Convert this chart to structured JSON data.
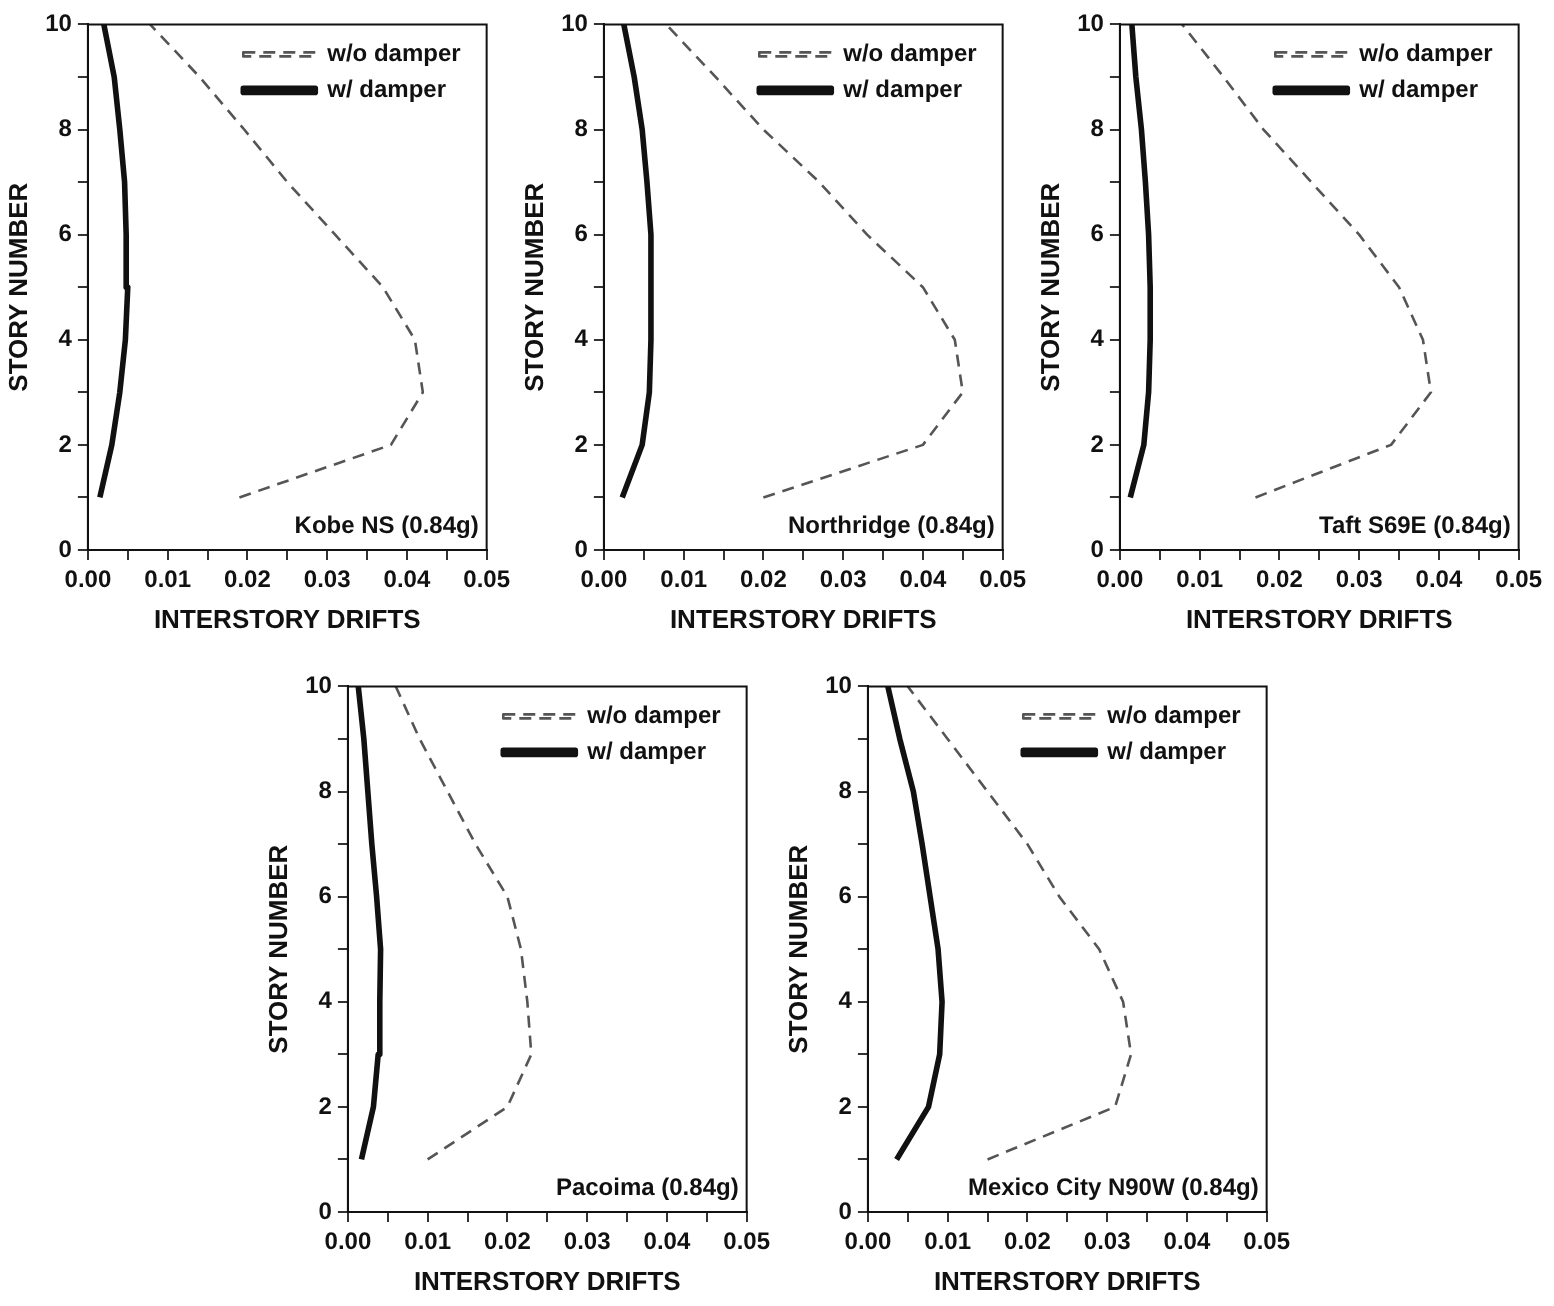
{
  "chart_data": [
    {
      "type": "line",
      "xlabel": "INTERSTORY DRIFTS",
      "ylabel": "STORY NUMBER",
      "xlim": [
        0,
        0.05
      ],
      "ylim": [
        0,
        10
      ],
      "xticks": [
        {
          "value": 0,
          "label": "0.00"
        },
        {
          "value": 0.005,
          "label": null
        },
        {
          "value": 0.01,
          "label": "0.01"
        },
        {
          "value": 0.015,
          "label": null
        },
        {
          "value": 0.02,
          "label": "0.02"
        },
        {
          "value": 0.025,
          "label": null
        },
        {
          "value": 0.03,
          "label": "0.03"
        },
        {
          "value": 0.035,
          "label": null
        },
        {
          "value": 0.04,
          "label": "0.04"
        },
        {
          "value": 0.045,
          "label": null
        },
        {
          "value": 0.05,
          "label": "0.05"
        }
      ],
      "yticks": [
        0,
        {
          "value": 1,
          "label": null
        },
        2,
        {
          "value": 3,
          "label": null
        },
        4,
        {
          "value": 5,
          "label": null
        },
        6,
        {
          "value": 7,
          "label": null
        },
        8,
        {
          "value": 9,
          "label": null
        },
        10
      ],
      "grid": false,
      "legend": "top right",
      "marker": "none",
      "annotations": [
        "Kobe NS (0.84g)"
      ],
      "series": [
        {
          "name": "w/o damper",
          "color": "#555555",
          "line_style": "dashed",
          "x": [
            0.019,
            0.038,
            0.042,
            0.041,
            0.037,
            0.031,
            0.025,
            0.0196,
            0.014,
            0.0078
          ],
          "values": [
            1,
            2,
            3,
            4,
            5,
            6,
            7,
            8,
            9,
            10
          ]
        },
        {
          "name": "w/ damper",
          "color": "#111111",
          "line_style": "solid",
          "x": [
            0.0015,
            0.003,
            0.004,
            0.0047,
            0.005,
            0.0048,
            0.0046,
            0.004,
            0.0033,
            0.002
          ],
          "values": [
            1,
            2,
            3,
            4,
            5,
            6,
            7,
            8,
            9,
            10
          ]
        }
      ]
    },
    {
      "type": "line",
      "xlabel": "INTERSTORY DRIFTS",
      "ylabel": "STORY NUMBER",
      "xlim": [
        0,
        0.05
      ],
      "ylim": [
        0,
        10
      ],
      "xticks": [
        {
          "value": 0,
          "label": "0.00"
        },
        {
          "value": 0.005,
          "label": null
        },
        {
          "value": 0.01,
          "label": "0.01"
        },
        {
          "value": 0.015,
          "label": null
        },
        {
          "value": 0.02,
          "label": "0.02"
        },
        {
          "value": 0.025,
          "label": null
        },
        {
          "value": 0.03,
          "label": "0.03"
        },
        {
          "value": 0.035,
          "label": null
        },
        {
          "value": 0.04,
          "label": "0.04"
        },
        {
          "value": 0.045,
          "label": null
        },
        {
          "value": 0.05,
          "label": "0.05"
        }
      ],
      "yticks": [
        0,
        {
          "value": 1,
          "label": null
        },
        2,
        {
          "value": 3,
          "label": null
        },
        4,
        {
          "value": 5,
          "label": null
        },
        6,
        {
          "value": 7,
          "label": null
        },
        8,
        {
          "value": 9,
          "label": null
        },
        10
      ],
      "grid": false,
      "legend": "top right",
      "marker": "none",
      "annotations": [
        "Northridge (0.84g)"
      ],
      "series": [
        {
          "name": "w/o damper",
          "color": "#555555",
          "line_style": "dashed",
          "x": [
            0.02,
            0.04,
            0.045,
            0.044,
            0.04,
            0.033,
            0.027,
            0.02,
            0.014,
            0.0078
          ],
          "values": [
            1,
            2,
            3,
            4,
            5,
            6,
            7,
            8,
            9,
            10
          ]
        },
        {
          "name": "w/ damper",
          "color": "#111111",
          "line_style": "solid",
          "x": [
            0.0023,
            0.0048,
            0.0057,
            0.0059,
            0.006,
            0.0058,
            0.0054,
            0.0048,
            0.0038,
            0.0025
          ],
          "values": [
            1,
            2,
            3,
            4,
            5,
            6,
            7,
            8,
            9,
            10
          ]
        }
      ]
    },
    {
      "type": "line",
      "xlabel": "INTERSTORY DRIFTS",
      "ylabel": "STORY NUMBER",
      "xlim": [
        0,
        0.05
      ],
      "ylim": [
        0,
        10
      ],
      "xticks": [
        {
          "value": 0,
          "label": "0.00"
        },
        {
          "value": 0.005,
          "label": null
        },
        {
          "value": 0.01,
          "label": "0.01"
        },
        {
          "value": 0.015,
          "label": null
        },
        {
          "value": 0.02,
          "label": "0.02"
        },
        {
          "value": 0.025,
          "label": null
        },
        {
          "value": 0.03,
          "label": "0.03"
        },
        {
          "value": 0.035,
          "label": null
        },
        {
          "value": 0.04,
          "label": "0.04"
        },
        {
          "value": 0.045,
          "label": null
        },
        {
          "value": 0.05,
          "label": "0.05"
        }
      ],
      "yticks": [
        0,
        {
          "value": 1,
          "label": null
        },
        2,
        {
          "value": 3,
          "label": null
        },
        4,
        {
          "value": 5,
          "label": null
        },
        6,
        {
          "value": 7,
          "label": null
        },
        8,
        {
          "value": 9,
          "label": null
        },
        10
      ],
      "grid": false,
      "legend": "top right",
      "marker": "none",
      "annotations": [
        "Taft S69E (0.84g)"
      ],
      "series": [
        {
          "name": "w/o damper",
          "color": "#555555",
          "line_style": "dashed",
          "x": [
            0.017,
            0.034,
            0.039,
            0.038,
            0.035,
            0.03,
            0.024,
            0.018,
            0.013,
            0.0078
          ],
          "values": [
            1,
            2,
            3,
            4,
            5,
            6,
            7,
            8,
            9,
            10
          ]
        },
        {
          "name": "w/ damper",
          "color": "#111111",
          "line_style": "solid",
          "x": [
            0.0013,
            0.003,
            0.0036,
            0.0038,
            0.0038,
            0.0036,
            0.0032,
            0.0027,
            0.002,
            0.0015
          ],
          "values": [
            1,
            2,
            3,
            4,
            5,
            6,
            7,
            8,
            9,
            10
          ]
        }
      ]
    },
    {
      "type": "line",
      "xlabel": "INTERSTORY DRIFTS",
      "ylabel": "STORY NUMBER",
      "xlim": [
        0,
        0.05
      ],
      "ylim": [
        0,
        10
      ],
      "xticks": [
        {
          "value": 0,
          "label": "0.00"
        },
        {
          "value": 0.005,
          "label": null
        },
        {
          "value": 0.01,
          "label": "0.01"
        },
        {
          "value": 0.015,
          "label": null
        },
        {
          "value": 0.02,
          "label": "0.02"
        },
        {
          "value": 0.025,
          "label": null
        },
        {
          "value": 0.03,
          "label": "0.03"
        },
        {
          "value": 0.035,
          "label": null
        },
        {
          "value": 0.04,
          "label": "0.04"
        },
        {
          "value": 0.045,
          "label": null
        },
        {
          "value": 0.05,
          "label": "0.05"
        }
      ],
      "yticks": [
        0,
        {
          "value": 1,
          "label": null
        },
        2,
        {
          "value": 3,
          "label": null
        },
        4,
        {
          "value": 5,
          "label": null
        },
        6,
        {
          "value": 7,
          "label": null
        },
        8,
        {
          "value": 9,
          "label": null
        },
        10
      ],
      "grid": false,
      "legend": "top right",
      "marker": "none",
      "annotations": [
        "Pacoima (0.84g)"
      ],
      "series": [
        {
          "name": "w/o damper",
          "color": "#555555",
          "line_style": "dashed",
          "x": [
            0.01,
            0.02,
            0.023,
            0.0225,
            0.0217,
            0.02,
            0.016,
            0.0125,
            0.009,
            0.006
          ],
          "values": [
            1,
            2,
            3,
            4,
            5,
            6,
            7,
            8,
            9,
            10
          ]
        },
        {
          "name": "w/ damper",
          "color": "#111111",
          "line_style": "solid",
          "x": [
            0.0017,
            0.0032,
            0.0038,
            0.004,
            0.0041,
            0.0036,
            0.003,
            0.0025,
            0.002,
            0.0013
          ],
          "values": [
            1,
            2,
            3,
            4,
            5,
            6,
            7,
            8,
            9,
            10
          ]
        }
      ]
    },
    {
      "type": "line",
      "xlabel": "INTERSTORY DRIFTS",
      "ylabel": "STORY NUMBER",
      "xlim": [
        0,
        0.05
      ],
      "ylim": [
        0,
        10
      ],
      "xticks": [
        {
          "value": 0,
          "label": "0.00"
        },
        {
          "value": 0.005,
          "label": null
        },
        {
          "value": 0.01,
          "label": "0.01"
        },
        {
          "value": 0.015,
          "label": null
        },
        {
          "value": 0.02,
          "label": "0.02"
        },
        {
          "value": 0.025,
          "label": null
        },
        {
          "value": 0.03,
          "label": "0.03"
        },
        {
          "value": 0.035,
          "label": null
        },
        {
          "value": 0.04,
          "label": "0.04"
        },
        {
          "value": 0.045,
          "label": null
        },
        {
          "value": 0.05,
          "label": "0.05"
        }
      ],
      "yticks": [
        0,
        {
          "value": 1,
          "label": null
        },
        2,
        {
          "value": 3,
          "label": null
        },
        4,
        {
          "value": 5,
          "label": null
        },
        6,
        {
          "value": 7,
          "label": null
        },
        8,
        {
          "value": 9,
          "label": null
        },
        10
      ],
      "grid": false,
      "legend": "top right",
      "marker": "none",
      "annotations": [
        "Mexico City N90W (0.84g)"
      ],
      "series": [
        {
          "name": "w/o damper",
          "color": "#555555",
          "line_style": "dashed",
          "x": [
            0.015,
            0.031,
            0.033,
            0.032,
            0.029,
            0.024,
            0.02,
            0.015,
            0.01,
            0.005
          ],
          "values": [
            1,
            2,
            3,
            4,
            5,
            6,
            7,
            8,
            9,
            10
          ]
        },
        {
          "name": "w/ damper",
          "color": "#111111",
          "line_style": "solid",
          "x": [
            0.0036,
            0.0076,
            0.009,
            0.0093,
            0.0088,
            0.0078,
            0.0068,
            0.0057,
            0.004,
            0.0025
          ],
          "values": [
            1,
            2,
            3,
            4,
            5,
            6,
            7,
            8,
            9,
            10
          ]
        }
      ]
    }
  ]
}
